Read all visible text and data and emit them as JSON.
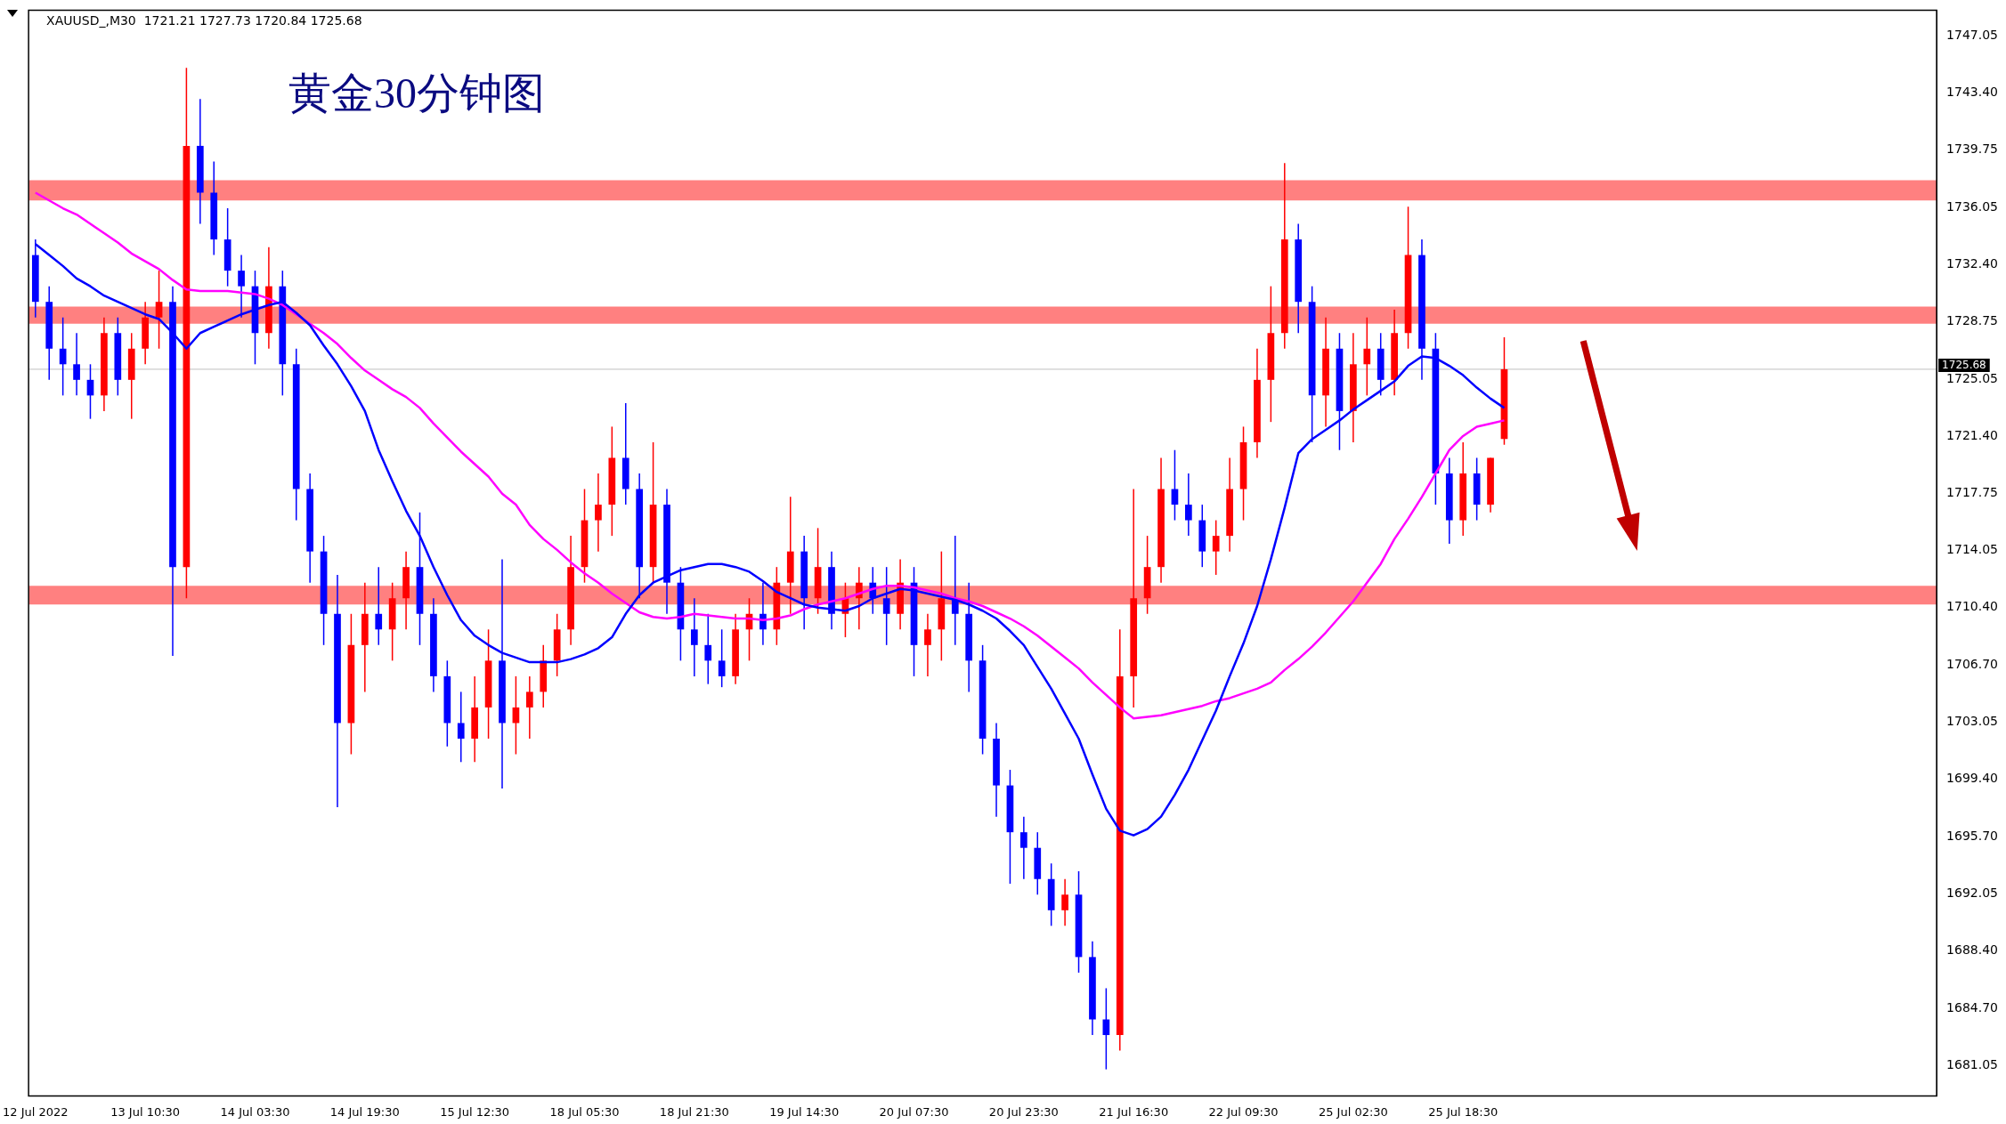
{
  "chart_data": {
    "type": "candlestick",
    "title": "黄金30分钟图",
    "annotations": [
      "XAUUSD_,M30  1721.21 1727.73 1720.84 1725.68"
    ],
    "categories": [
      "12 Jul 2022",
      null,
      null,
      null,
      null,
      null,
      null,
      null,
      "13 Jul 10:30",
      null,
      null,
      null,
      null,
      null,
      null,
      null,
      "14 Jul 03:30",
      null,
      null,
      null,
      null,
      null,
      null,
      null,
      "14 Jul 19:30",
      null,
      null,
      null,
      null,
      null,
      null,
      null,
      "15 Jul 12:30",
      null,
      null,
      null,
      null,
      null,
      null,
      null,
      "18 Jul 05:30",
      null,
      null,
      null,
      null,
      null,
      null,
      null,
      "18 Jul 21:30",
      null,
      null,
      null,
      null,
      null,
      null,
      null,
      "19 Jul 14:30",
      null,
      null,
      null,
      null,
      null,
      null,
      null,
      "20 Jul 07:30",
      null,
      null,
      null,
      null,
      null,
      null,
      null,
      "20 Jul 23:30",
      null,
      null,
      null,
      null,
      null,
      null,
      null,
      "21 Jul 16:30",
      null,
      null,
      null,
      null,
      null,
      null,
      null,
      "22 Jul 09:30",
      null,
      null,
      null,
      null,
      null,
      null,
      null,
      "25 Jul 02:30",
      null,
      null,
      null,
      null,
      null,
      null,
      null,
      "25 Jul 18:30",
      null,
      null,
      null,
      null,
      null,
      null,
      null,
      null,
      null,
      null,
      null,
      null,
      null,
      null,
      null,
      null,
      null,
      null,
      null,
      null,
      null,
      null,
      null,
      null,
      null,
      null,
      null,
      null,
      null,
      null,
      null,
      null,
      null,
      null
    ],
    "ohlc": [
      [
        1733,
        1734,
        1729,
        1730
      ],
      [
        1730,
        1731,
        1725,
        1727
      ],
      [
        1727,
        1729,
        1724,
        1726
      ],
      [
        1726,
        1728,
        1724,
        1725
      ],
      [
        1725,
        1726,
        1722.5,
        1724
      ],
      [
        1724,
        1729,
        1723,
        1728
      ],
      [
        1728,
        1729,
        1724,
        1725
      ],
      [
        1725,
        1728,
        1722.5,
        1727
      ],
      [
        1727,
        1730,
        1726,
        1729
      ],
      [
        1729,
        1732,
        1727,
        1730
      ],
      [
        1730,
        1731,
        1707.3,
        1713
      ],
      [
        1713,
        1745,
        1711,
        1740
      ],
      [
        1740,
        1743,
        1735,
        1737
      ],
      [
        1737,
        1739,
        1733,
        1734
      ],
      [
        1734,
        1736,
        1731,
        1732
      ],
      [
        1732,
        1733,
        1729,
        1731
      ],
      [
        1731,
        1732,
        1726,
        1728
      ],
      [
        1728,
        1733.5,
        1727,
        1731
      ],
      [
        1731,
        1732,
        1724,
        1726
      ],
      [
        1726,
        1727,
        1716,
        1718
      ],
      [
        1718,
        1719,
        1712,
        1714
      ],
      [
        1714,
        1715,
        1708,
        1710
      ],
      [
        1710,
        1712.5,
        1697.6,
        1703
      ],
      [
        1703,
        1710,
        1701,
        1708
      ],
      [
        1708,
        1712,
        1705,
        1710
      ],
      [
        1710,
        1713,
        1708,
        1709
      ],
      [
        1709,
        1712,
        1707,
        1711
      ],
      [
        1711,
        1714,
        1709,
        1713
      ],
      [
        1713,
        1716.5,
        1708,
        1710
      ],
      [
        1710,
        1711,
        1705,
        1706
      ],
      [
        1706,
        1707,
        1701.5,
        1703
      ],
      [
        1703,
        1705,
        1700.5,
        1702
      ],
      [
        1702,
        1706,
        1700.5,
        1704
      ],
      [
        1704,
        1709,
        1702,
        1707
      ],
      [
        1707,
        1713.5,
        1698.8,
        1703
      ],
      [
        1703,
        1706,
        1701,
        1704
      ],
      [
        1704,
        1706,
        1702,
        1705
      ],
      [
        1705,
        1708,
        1704,
        1707
      ],
      [
        1707,
        1710,
        1706,
        1709
      ],
      [
        1709,
        1715,
        1708,
        1713
      ],
      [
        1713,
        1718,
        1712,
        1716
      ],
      [
        1716,
        1719,
        1714,
        1717
      ],
      [
        1717,
        1722,
        1715,
        1720
      ],
      [
        1720,
        1723.5,
        1717,
        1718
      ],
      [
        1718,
        1719,
        1711,
        1713
      ],
      [
        1713,
        1721,
        1712,
        1717
      ],
      [
        1717,
        1718,
        1710,
        1712
      ],
      [
        1712,
        1713,
        1707,
        1709
      ],
      [
        1709,
        1711,
        1706,
        1708
      ],
      [
        1708,
        1710,
        1705.5,
        1707
      ],
      [
        1707,
        1709,
        1705.3,
        1706
      ],
      [
        1706,
        1710,
        1705.5,
        1709
      ],
      [
        1709,
        1711,
        1707,
        1710
      ],
      [
        1710,
        1712,
        1708,
        1709
      ],
      [
        1709,
        1713,
        1708,
        1712
      ],
      [
        1712,
        1717.5,
        1710,
        1714
      ],
      [
        1714,
        1715,
        1709,
        1711
      ],
      [
        1711,
        1715.5,
        1710,
        1713
      ],
      [
        1713,
        1714,
        1709,
        1710
      ],
      [
        1710,
        1712,
        1708.5,
        1711
      ],
      [
        1711,
        1713,
        1709,
        1712
      ],
      [
        1712,
        1713,
        1710,
        1711
      ],
      [
        1711,
        1713,
        1708,
        1710
      ],
      [
        1710,
        1713.5,
        1709,
        1712
      ],
      [
        1712,
        1713,
        1706,
        1708
      ],
      [
        1708,
        1710,
        1706,
        1709
      ],
      [
        1709,
        1714,
        1707,
        1711
      ],
      [
        1711,
        1715,
        1708,
        1710
      ],
      [
        1710,
        1712,
        1705,
        1707
      ],
      [
        1707,
        1708,
        1701,
        1702
      ],
      [
        1702,
        1703,
        1697,
        1699
      ],
      [
        1699,
        1700,
        1692.7,
        1696
      ],
      [
        1696,
        1697,
        1693,
        1695
      ],
      [
        1695,
        1696,
        1692,
        1693
      ],
      [
        1693,
        1694,
        1690,
        1691
      ],
      [
        1691,
        1693,
        1690,
        1692
      ],
      [
        1692,
        1693.5,
        1687,
        1688
      ],
      [
        1688,
        1689,
        1683,
        1684
      ],
      [
        1684,
        1686,
        1680.8,
        1683
      ],
      [
        1683,
        1709,
        1682,
        1706
      ],
      [
        1706,
        1718,
        1704,
        1711
      ],
      [
        1711,
        1715,
        1710,
        1713
      ],
      [
        1713,
        1720,
        1712,
        1718
      ],
      [
        1718,
        1720.5,
        1716,
        1717
      ],
      [
        1717,
        1719,
        1715,
        1716
      ],
      [
        1716,
        1717,
        1713,
        1714
      ],
      [
        1714,
        1716,
        1712.5,
        1715
      ],
      [
        1715,
        1720,
        1714,
        1718
      ],
      [
        1718,
        1722,
        1716,
        1721
      ],
      [
        1721,
        1727,
        1720,
        1725
      ],
      [
        1725,
        1731,
        1722.3,
        1728
      ],
      [
        1728,
        1738.9,
        1727,
        1734
      ],
      [
        1734,
        1735,
        1728,
        1730
      ],
      [
        1730,
        1731,
        1721,
        1724
      ],
      [
        1724,
        1729,
        1722,
        1727
      ],
      [
        1727,
        1728,
        1720.5,
        1723
      ],
      [
        1723,
        1728,
        1721,
        1726
      ],
      [
        1726,
        1729,
        1724,
        1727
      ],
      [
        1727,
        1728,
        1724,
        1725
      ],
      [
        1725,
        1729.5,
        1724,
        1728
      ],
      [
        1728,
        1736.1,
        1727,
        1733
      ],
      [
        1733,
        1734,
        1725,
        1727
      ],
      [
        1727,
        1728,
        1717,
        1719
      ],
      [
        1719,
        1720,
        1714.5,
        1716
      ],
      [
        1716,
        1721,
        1715,
        1719
      ],
      [
        1719,
        1720,
        1716,
        1717
      ],
      [
        1717,
        1720,
        1716.5,
        1720
      ],
      [
        1721.21,
        1727.73,
        1720.84,
        1725.68
      ],
      null,
      null,
      null,
      null,
      null,
      null,
      null,
      null,
      null,
      null,
      null,
      null,
      null,
      null,
      null,
      null,
      null,
      null,
      null,
      null,
      null,
      null,
      null,
      null,
      null,
      null,
      null,
      null,
      null,
      null,
      null
    ],
    "series": [
      {
        "type": "line",
        "color": "#0000ff",
        "values": [
          1733.7,
          1733,
          1732.3,
          1731.5,
          1731,
          1730.4,
          1730,
          1729.6,
          1729.2,
          1728.9,
          1728,
          1727,
          1728,
          1728.4,
          1728.8,
          1729.2,
          1729.5,
          1729.8,
          1730,
          1729.3,
          1728.5,
          1727.2,
          1726,
          1724.6,
          1723,
          1720.5,
          1718.5,
          1716.6,
          1715,
          1713,
          1711.2,
          1709.6,
          1708.6,
          1708,
          1707.5,
          1707.2,
          1706.9,
          1706.9,
          1706.9,
          1707.1,
          1707.4,
          1707.8,
          1708.5,
          1710,
          1711.2,
          1712,
          1712.4,
          1712.8,
          1713,
          1713.2,
          1713.2,
          1713,
          1712.7,
          1712.1,
          1711.4,
          1711,
          1710.6,
          1710.4,
          1710.3,
          1710.2,
          1710.5,
          1711,
          1711.3,
          1711.6,
          1711.5,
          1711.3,
          1711.1,
          1710.9,
          1710.6,
          1710.2,
          1709.7,
          1708.9,
          1708,
          1706.6,
          1705.2,
          1703.6,
          1702,
          1699.7,
          1697.5,
          1696.1,
          1695.8,
          1696.2,
          1697,
          1698.4,
          1700,
          1701.9,
          1703.8,
          1706,
          1708.1,
          1710.5,
          1713.5,
          1716.8,
          1720.3,
          1721.2,
          1721.8,
          1722.4,
          1723.1,
          1723.7,
          1724.3,
          1724.9,
          1725.9,
          1726.5,
          1726.4,
          1725.9,
          1725.3,
          1724.5,
          1723.8,
          1723.2,
          null,
          null,
          null,
          null,
          null,
          null,
          null,
          null,
          null,
          null,
          null,
          null,
          null,
          null,
          null,
          null,
          null,
          null,
          null,
          null,
          null,
          null,
          null,
          null,
          null,
          null,
          null,
          null,
          null,
          null,
          null
        ]
      },
      {
        "type": "line",
        "color": "#ff00ff",
        "values": [
          1737,
          1736.5,
          1736,
          1735.6,
          1735,
          1734.4,
          1733.8,
          1733.1,
          1732.6,
          1732.1,
          1731.4,
          1730.8,
          1730.7,
          1730.7,
          1730.7,
          1730.6,
          1730.5,
          1730.2,
          1729.8,
          1729.2,
          1728.6,
          1728,
          1727.3,
          1726.4,
          1725.6,
          1725,
          1724.4,
          1723.9,
          1723.2,
          1722.2,
          1721.3,
          1720.4,
          1719.6,
          1718.8,
          1717.7,
          1717,
          1715.7,
          1714.8,
          1714.1,
          1713.3,
          1712.6,
          1712,
          1711.3,
          1710.7,
          1710.1,
          1709.8,
          1709.7,
          1709.8,
          1710,
          1709.9,
          1709.8,
          1709.7,
          1709.7,
          1709.6,
          1709.7,
          1709.9,
          1710.3,
          1710.6,
          1710.8,
          1711,
          1711.3,
          1711.6,
          1711.8,
          1711.8,
          1711.7,
          1711.5,
          1711.3,
          1711,
          1710.8,
          1710.5,
          1710.1,
          1709.7,
          1709.2,
          1708.6,
          1707.9,
          1707.2,
          1706.5,
          1705.6,
          1704.8,
          1704,
          1703.3,
          1703.4,
          1703.5,
          1703.7,
          1703.9,
          1704.1,
          1704.4,
          1704.6,
          1704.9,
          1705.2,
          1705.6,
          1706.4,
          1707.1,
          1707.9,
          1708.8,
          1709.8,
          1710.8,
          1712,
          1713.2,
          1714.8,
          1716.1,
          1717.5,
          1719,
          1720.5,
          1721.4,
          1722,
          1722.2,
          1722.4,
          null,
          null,
          null,
          null,
          null,
          null,
          null,
          null,
          null,
          null,
          null,
          null,
          null,
          null,
          null,
          null,
          null,
          null,
          null,
          null,
          null,
          null,
          null,
          null,
          null,
          null,
          null,
          null,
          null,
          null,
          null
        ]
      }
    ],
    "bands": [
      {
        "axis": "y",
        "from": 1736.5,
        "to": 1737.8,
        "color": "#ff8080"
      },
      {
        "axis": "y",
        "from": 1728.6,
        "to": 1729.7,
        "color": "#ff8080"
      },
      {
        "axis": "y",
        "from": 1710.6,
        "to": 1711.8,
        "color": "#ff8080"
      }
    ],
    "ref_lines": [
      {
        "axis": "y",
        "value": 1725.68,
        "label": "1725.68",
        "color": "#c0c0c0"
      }
    ],
    "ylim": [
      1679.1,
      1748.7
    ],
    "yticks": [
      1681.05,
      {
        "value": 1684.7,
        "label": "1684.70"
      },
      {
        "value": 1688.4,
        "label": "1688.40"
      },
      1692.05,
      {
        "value": 1695.7,
        "label": "1695.70"
      },
      {
        "value": 1699.4,
        "label": "1699.40"
      },
      1703.05,
      {
        "value": 1706.7,
        "label": "1706.70"
      },
      {
        "value": 1710.4,
        "label": "1710.40"
      },
      1714.05,
      1717.75,
      {
        "value": 1721.4,
        "label": "1721.40"
      },
      1725.05,
      1728.75,
      {
        "value": 1732.4,
        "label": "1732.40"
      },
      1736.05,
      1739.75,
      {
        "value": 1743.4,
        "label": "1743.40"
      },
      1747.05
    ]
  }
}
